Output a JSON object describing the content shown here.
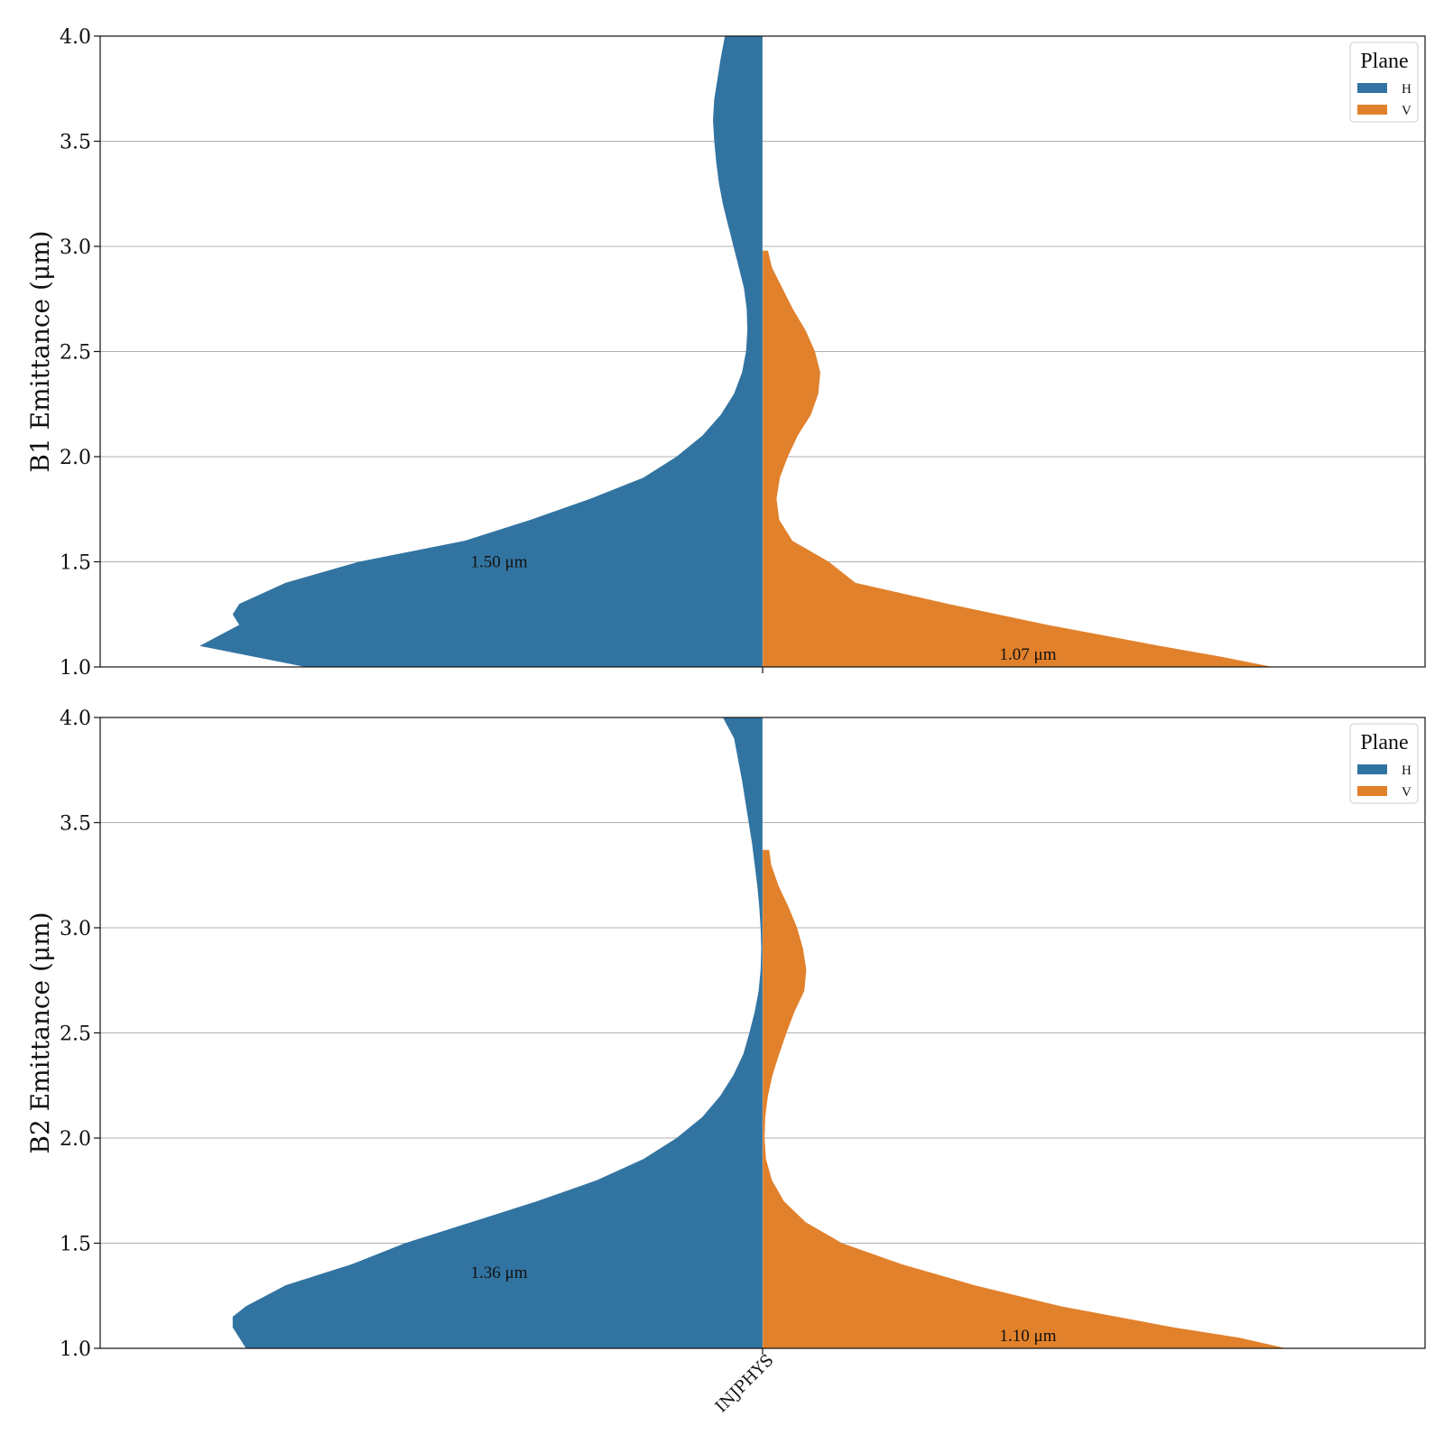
{
  "chart_data": [
    {
      "type": "violin",
      "category": "INJPHYS",
      "ylabel": "B1 Emittance (μm)",
      "ylim": [
        1.0,
        4.0
      ],
      "yticks": [
        "1.0",
        "1.5",
        "2.0",
        "2.5",
        "3.0",
        "3.5",
        "4.0"
      ],
      "grid": true,
      "legend": {
        "title": "Plane",
        "placement": "top-right",
        "entries": [
          "H",
          "V"
        ]
      },
      "series": [
        {
          "name": "H",
          "color": "#3274a1",
          "side": "left",
          "median_label": "1.50 μm",
          "median_value": 1.5,
          "profile": [
            [
              1.0,
              0.69
            ],
            [
              1.1,
              0.85
            ],
            [
              1.2,
              0.79
            ],
            [
              1.25,
              0.8
            ],
            [
              1.3,
              0.79
            ],
            [
              1.4,
              0.72
            ],
            [
              1.5,
              0.61
            ],
            [
              1.6,
              0.45
            ],
            [
              1.7,
              0.35
            ],
            [
              1.8,
              0.26
            ],
            [
              1.9,
              0.18
            ],
            [
              2.0,
              0.13
            ],
            [
              2.1,
              0.091
            ],
            [
              2.2,
              0.063
            ],
            [
              2.3,
              0.043
            ],
            [
              2.4,
              0.031
            ],
            [
              2.5,
              0.025
            ],
            [
              2.6,
              0.023
            ],
            [
              2.7,
              0.024
            ],
            [
              2.8,
              0.028
            ],
            [
              2.9,
              0.036
            ],
            [
              3.0,
              0.044
            ],
            [
              3.1,
              0.052
            ],
            [
              3.2,
              0.06
            ],
            [
              3.3,
              0.066
            ],
            [
              3.4,
              0.07
            ],
            [
              3.5,
              0.073
            ],
            [
              3.6,
              0.075
            ],
            [
              3.7,
              0.073
            ],
            [
              3.8,
              0.068
            ],
            [
              3.9,
              0.063
            ],
            [
              4.0,
              0.057
            ]
          ]
        },
        {
          "name": "V",
          "color": "#e1812c",
          "side": "right",
          "median_label": "1.07 μm",
          "median_value": 1.07,
          "profile": [
            [
              1.0,
              0.77
            ],
            [
              1.05,
              0.69
            ],
            [
              1.1,
              0.6
            ],
            [
              1.2,
              0.43
            ],
            [
              1.3,
              0.28
            ],
            [
              1.4,
              0.14
            ],
            [
              1.5,
              0.1
            ],
            [
              1.6,
              0.045
            ],
            [
              1.7,
              0.025
            ],
            [
              1.8,
              0.021
            ],
            [
              1.9,
              0.026
            ],
            [
              2.0,
              0.038
            ],
            [
              2.1,
              0.053
            ],
            [
              2.2,
              0.073
            ],
            [
              2.3,
              0.084
            ],
            [
              2.4,
              0.087
            ],
            [
              2.5,
              0.079
            ],
            [
              2.6,
              0.065
            ],
            [
              2.7,
              0.046
            ],
            [
              2.8,
              0.03
            ],
            [
              2.9,
              0.014
            ],
            [
              2.98,
              0.008
            ]
          ]
        }
      ]
    },
    {
      "type": "violin",
      "category": "INJPHYS",
      "ylabel": "B2 Emittance (μm)",
      "ylim": [
        1.0,
        4.0
      ],
      "yticks": [
        "1.0",
        "1.5",
        "2.0",
        "2.5",
        "3.0",
        "3.5",
        "4.0"
      ],
      "grid": true,
      "legend": {
        "title": "Plane",
        "placement": "top-right",
        "entries": [
          "H",
          "V"
        ]
      },
      "series": [
        {
          "name": "H",
          "color": "#3274a1",
          "side": "left",
          "median_label": "1.36 μm",
          "median_value": 1.36,
          "profile": [
            [
              1.0,
              0.78
            ],
            [
              1.05,
              0.79
            ],
            [
              1.1,
              0.8
            ],
            [
              1.15,
              0.8
            ],
            [
              1.2,
              0.78
            ],
            [
              1.3,
              0.72
            ],
            [
              1.4,
              0.62
            ],
            [
              1.5,
              0.54
            ],
            [
              1.6,
              0.44
            ],
            [
              1.7,
              0.34
            ],
            [
              1.8,
              0.25
            ],
            [
              1.9,
              0.18
            ],
            [
              2.0,
              0.13
            ],
            [
              2.1,
              0.091
            ],
            [
              2.2,
              0.064
            ],
            [
              2.3,
              0.044
            ],
            [
              2.4,
              0.029
            ],
            [
              2.5,
              0.02
            ],
            [
              2.6,
              0.012
            ],
            [
              2.7,
              0.006
            ],
            [
              2.8,
              0.003
            ],
            [
              2.9,
              0.002
            ],
            [
              3.0,
              0.003
            ],
            [
              3.1,
              0.005
            ],
            [
              3.2,
              0.008
            ],
            [
              3.3,
              0.012
            ],
            [
              3.4,
              0.016
            ],
            [
              3.5,
              0.021
            ],
            [
              3.6,
              0.026
            ],
            [
              3.7,
              0.031
            ],
            [
              3.8,
              0.037
            ],
            [
              3.9,
              0.043
            ],
            [
              4.0,
              0.06
            ]
          ]
        },
        {
          "name": "V",
          "color": "#e1812c",
          "side": "right",
          "median_label": "1.10 μm",
          "median_value": 1.1,
          "profile": [
            [
              1.0,
              0.79
            ],
            [
              1.05,
              0.72
            ],
            [
              1.1,
              0.62
            ],
            [
              1.2,
              0.45
            ],
            [
              1.3,
              0.32
            ],
            [
              1.4,
              0.21
            ],
            [
              1.5,
              0.12
            ],
            [
              1.6,
              0.065
            ],
            [
              1.7,
              0.032
            ],
            [
              1.8,
              0.014
            ],
            [
              1.9,
              0.005
            ],
            [
              2.0,
              0.003
            ],
            [
              2.1,
              0.004
            ],
            [
              2.2,
              0.008
            ],
            [
              2.3,
              0.015
            ],
            [
              2.4,
              0.025
            ],
            [
              2.5,
              0.036
            ],
            [
              2.6,
              0.048
            ],
            [
              2.7,
              0.063
            ],
            [
              2.8,
              0.066
            ],
            [
              2.9,
              0.061
            ],
            [
              3.0,
              0.052
            ],
            [
              3.1,
              0.039
            ],
            [
              3.2,
              0.024
            ],
            [
              3.3,
              0.013
            ],
            [
              3.37,
              0.01
            ]
          ]
        }
      ]
    }
  ]
}
